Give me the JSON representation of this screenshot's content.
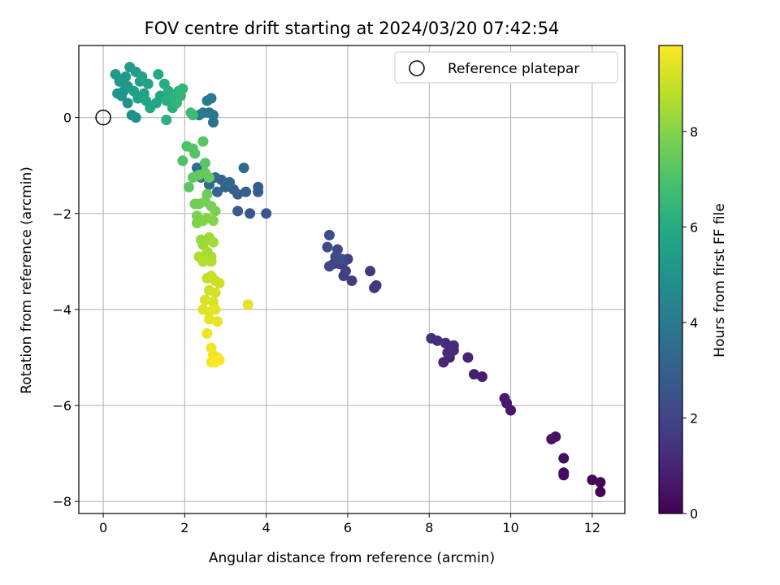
{
  "chart_data": {
    "type": "scatter",
    "title": "FOV centre drift starting at 2024/03/20 07:42:54",
    "xlabel": "Angular distance from reference (arcmin)",
    "ylabel": "Rotation from reference (arcmin)",
    "xlim": [
      -0.6,
      12.8
    ],
    "ylim": [
      -8.25,
      1.5
    ],
    "xticks": [
      0,
      2,
      4,
      6,
      8,
      10,
      12
    ],
    "yticks": [
      -8,
      -6,
      -4,
      -2,
      0
    ],
    "grid": true,
    "legend": {
      "position": "top-right",
      "entries": [
        "Reference platepar"
      ]
    },
    "reference_point": {
      "x": 0,
      "y": 0
    },
    "colorbar": {
      "label": "Hours from first FF file",
      "range": [
        0,
        9.8
      ],
      "ticks": [
        0,
        2,
        4,
        6,
        8
      ],
      "colormap": "viridis"
    },
    "points": [
      {
        "x": 12.2,
        "y": -7.8,
        "c": 0.05
      },
      {
        "x": 12.2,
        "y": -7.6,
        "c": 0.1
      },
      {
        "x": 12.0,
        "y": -7.55,
        "c": 0.15
      },
      {
        "x": 11.3,
        "y": -7.45,
        "c": 0.25
      },
      {
        "x": 11.3,
        "y": -7.4,
        "c": 0.3
      },
      {
        "x": 11.3,
        "y": -7.1,
        "c": 0.35
      },
      {
        "x": 11.1,
        "y": -6.65,
        "c": 0.45
      },
      {
        "x": 11.0,
        "y": -6.7,
        "c": 0.5
      },
      {
        "x": 10.0,
        "y": -6.1,
        "c": 0.6
      },
      {
        "x": 9.9,
        "y": -5.95,
        "c": 0.65
      },
      {
        "x": 9.85,
        "y": -5.85,
        "c": 0.7
      },
      {
        "x": 9.3,
        "y": -5.4,
        "c": 0.8
      },
      {
        "x": 9.1,
        "y": -5.35,
        "c": 0.85
      },
      {
        "x": 8.95,
        "y": -5.0,
        "c": 0.9
      },
      {
        "x": 8.35,
        "y": -5.1,
        "c": 1.0
      },
      {
        "x": 8.5,
        "y": -5.0,
        "c": 1.05
      },
      {
        "x": 8.6,
        "y": -4.85,
        "c": 1.1
      },
      {
        "x": 8.45,
        "y": -4.9,
        "c": 1.15
      },
      {
        "x": 8.6,
        "y": -4.75,
        "c": 1.2
      },
      {
        "x": 8.4,
        "y": -4.7,
        "c": 1.25
      },
      {
        "x": 8.2,
        "y": -4.65,
        "c": 1.3
      },
      {
        "x": 8.05,
        "y": -4.6,
        "c": 1.35
      },
      {
        "x": 6.65,
        "y": -3.55,
        "c": 1.5
      },
      {
        "x": 6.7,
        "y": -3.5,
        "c": 1.55
      },
      {
        "x": 6.55,
        "y": -3.2,
        "c": 1.6
      },
      {
        "x": 6.1,
        "y": -3.4,
        "c": 1.7
      },
      {
        "x": 5.9,
        "y": -3.3,
        "c": 1.75
      },
      {
        "x": 5.95,
        "y": -3.2,
        "c": 1.8
      },
      {
        "x": 5.8,
        "y": -3.05,
        "c": 1.85
      },
      {
        "x": 6.0,
        "y": -2.95,
        "c": 1.9
      },
      {
        "x": 5.9,
        "y": -3.0,
        "c": 1.95
      },
      {
        "x": 5.65,
        "y": -3.05,
        "c": 2.0
      },
      {
        "x": 5.55,
        "y": -3.1,
        "c": 2.05
      },
      {
        "x": 5.7,
        "y": -2.9,
        "c": 2.1
      },
      {
        "x": 5.75,
        "y": -2.75,
        "c": 2.15
      },
      {
        "x": 5.5,
        "y": -2.7,
        "c": 2.2
      },
      {
        "x": 5.55,
        "y": -2.45,
        "c": 2.25
      },
      {
        "x": 5.85,
        "y": -2.95,
        "c": 2.3
      },
      {
        "x": 4.0,
        "y": -2.0,
        "c": 2.6
      },
      {
        "x": 3.6,
        "y": -2.0,
        "c": 2.7
      },
      {
        "x": 3.3,
        "y": -1.95,
        "c": 2.8
      },
      {
        "x": 3.8,
        "y": -1.55,
        "c": 2.85
      },
      {
        "x": 3.8,
        "y": -1.45,
        "c": 2.9
      },
      {
        "x": 3.5,
        "y": -1.55,
        "c": 2.95
      },
      {
        "x": 3.3,
        "y": -1.6,
        "c": 3.0
      },
      {
        "x": 3.2,
        "y": -1.5,
        "c": 3.05
      },
      {
        "x": 3.0,
        "y": -1.45,
        "c": 3.1
      },
      {
        "x": 2.8,
        "y": -1.55,
        "c": 3.15
      },
      {
        "x": 2.9,
        "y": -1.3,
        "c": 3.2
      },
      {
        "x": 2.75,
        "y": -1.25,
        "c": 3.25
      },
      {
        "x": 3.1,
        "y": -1.35,
        "c": 3.3
      },
      {
        "x": 3.45,
        "y": -1.05,
        "c": 3.35
      },
      {
        "x": 2.6,
        "y": -1.4,
        "c": 3.4
      },
      {
        "x": 2.4,
        "y": -1.25,
        "c": 3.45
      },
      {
        "x": 2.3,
        "y": -1.05,
        "c": 3.5
      },
      {
        "x": 2.7,
        "y": -0.1,
        "c": 3.7
      },
      {
        "x": 2.7,
        "y": 0.05,
        "c": 3.8
      },
      {
        "x": 2.6,
        "y": 0.1,
        "c": 3.85
      },
      {
        "x": 2.45,
        "y": 0.1,
        "c": 3.9
      },
      {
        "x": 2.35,
        "y": 0.05,
        "c": 3.95
      },
      {
        "x": 2.55,
        "y": 0.35,
        "c": 4.0
      },
      {
        "x": 2.65,
        "y": 0.4,
        "c": 4.05
      },
      {
        "x": 0.7,
        "y": 0.05,
        "c": 4.8
      },
      {
        "x": 0.8,
        "y": 0.0,
        "c": 4.9
      },
      {
        "x": 0.6,
        "y": 0.3,
        "c": 4.95
      },
      {
        "x": 0.45,
        "y": 0.45,
        "c": 5.0
      },
      {
        "x": 0.35,
        "y": 0.5,
        "c": 5.05
      },
      {
        "x": 0.5,
        "y": 0.55,
        "c": 5.1
      },
      {
        "x": 0.6,
        "y": 0.65,
        "c": 5.15
      },
      {
        "x": 0.4,
        "y": 0.75,
        "c": 5.2
      },
      {
        "x": 0.3,
        "y": 0.9,
        "c": 5.25
      },
      {
        "x": 0.55,
        "y": 0.85,
        "c": 5.3
      },
      {
        "x": 0.65,
        "y": 1.05,
        "c": 5.35
      },
      {
        "x": 0.8,
        "y": 0.95,
        "c": 5.4
      },
      {
        "x": 0.9,
        "y": 0.75,
        "c": 5.45
      },
      {
        "x": 0.75,
        "y": 0.55,
        "c": 5.5
      },
      {
        "x": 0.85,
        "y": 0.4,
        "c": 5.55
      },
      {
        "x": 1.0,
        "y": 0.5,
        "c": 5.6
      },
      {
        "x": 1.1,
        "y": 0.7,
        "c": 5.65
      },
      {
        "x": 0.95,
        "y": 0.85,
        "c": 5.7
      },
      {
        "x": 1.05,
        "y": 0.35,
        "c": 5.75
      },
      {
        "x": 1.15,
        "y": 0.2,
        "c": 5.8
      },
      {
        "x": 1.3,
        "y": 0.3,
        "c": 5.85
      },
      {
        "x": 1.4,
        "y": 0.45,
        "c": 5.9
      },
      {
        "x": 1.35,
        "y": 0.9,
        "c": 5.95
      },
      {
        "x": 1.5,
        "y": 0.7,
        "c": 6.0
      },
      {
        "x": 1.6,
        "y": 0.55,
        "c": 6.05
      },
      {
        "x": 1.55,
        "y": 0.35,
        "c": 6.1
      },
      {
        "x": 1.7,
        "y": 0.2,
        "c": 6.15
      },
      {
        "x": 1.55,
        "y": -0.05,
        "c": 6.2
      },
      {
        "x": 1.75,
        "y": 0.4,
        "c": 6.25
      },
      {
        "x": 1.85,
        "y": 0.55,
        "c": 6.3
      },
      {
        "x": 1.9,
        "y": 0.45,
        "c": 6.35
      },
      {
        "x": 1.95,
        "y": 0.6,
        "c": 6.4
      },
      {
        "x": 1.8,
        "y": 0.3,
        "c": 6.45
      },
      {
        "x": 2.2,
        "y": 0.05,
        "c": 6.7
      },
      {
        "x": 2.15,
        "y": 0.1,
        "c": 6.75
      },
      {
        "x": 1.95,
        "y": -0.9,
        "c": 7.0
      },
      {
        "x": 2.05,
        "y": -0.6,
        "c": 7.05
      },
      {
        "x": 2.2,
        "y": -0.65,
        "c": 7.1
      },
      {
        "x": 2.25,
        "y": -0.75,
        "c": 7.15
      },
      {
        "x": 2.45,
        "y": -0.5,
        "c": 7.2
      },
      {
        "x": 2.5,
        "y": -0.95,
        "c": 7.25
      },
      {
        "x": 2.1,
        "y": -1.45,
        "c": 7.3
      },
      {
        "x": 2.2,
        "y": -1.25,
        "c": 7.35
      },
      {
        "x": 2.35,
        "y": -1.2,
        "c": 7.4
      },
      {
        "x": 2.5,
        "y": -1.15,
        "c": 7.45
      },
      {
        "x": 2.6,
        "y": -1.25,
        "c": 7.5
      },
      {
        "x": 2.55,
        "y": -1.6,
        "c": 7.55
      },
      {
        "x": 2.35,
        "y": -1.8,
        "c": 7.6
      },
      {
        "x": 2.25,
        "y": -1.8,
        "c": 7.65
      },
      {
        "x": 2.5,
        "y": -1.75,
        "c": 7.7
      },
      {
        "x": 2.65,
        "y": -1.85,
        "c": 7.75
      },
      {
        "x": 2.75,
        "y": -1.95,
        "c": 7.8
      },
      {
        "x": 2.3,
        "y": -2.05,
        "c": 7.85
      },
      {
        "x": 2.3,
        "y": -2.2,
        "c": 7.9
      },
      {
        "x": 2.45,
        "y": -2.15,
        "c": 7.95
      },
      {
        "x": 2.55,
        "y": -2.1,
        "c": 8.0
      },
      {
        "x": 2.7,
        "y": -2.15,
        "c": 8.05
      },
      {
        "x": 2.4,
        "y": -2.55,
        "c": 8.3
      },
      {
        "x": 2.45,
        "y": -2.65,
        "c": 8.35
      },
      {
        "x": 2.6,
        "y": -2.5,
        "c": 8.4
      },
      {
        "x": 2.7,
        "y": -2.6,
        "c": 8.45
      },
      {
        "x": 2.55,
        "y": -2.8,
        "c": 8.5
      },
      {
        "x": 2.65,
        "y": -2.9,
        "c": 8.55
      },
      {
        "x": 2.35,
        "y": -2.9,
        "c": 8.6
      },
      {
        "x": 2.45,
        "y": -3.0,
        "c": 8.65
      },
      {
        "x": 2.65,
        "y": -3.0,
        "c": 8.7
      },
      {
        "x": 2.55,
        "y": -3.35,
        "c": 8.9
      },
      {
        "x": 2.65,
        "y": -3.3,
        "c": 8.95
      },
      {
        "x": 2.75,
        "y": -3.4,
        "c": 9.0
      },
      {
        "x": 2.85,
        "y": -3.45,
        "c": 9.05
      },
      {
        "x": 2.6,
        "y": -3.6,
        "c": 9.1
      },
      {
        "x": 2.75,
        "y": -3.65,
        "c": 9.15
      },
      {
        "x": 2.5,
        "y": -3.8,
        "c": 9.2
      },
      {
        "x": 2.7,
        "y": -3.85,
        "c": 9.25
      },
      {
        "x": 2.45,
        "y": -4.0,
        "c": 9.3
      },
      {
        "x": 2.6,
        "y": -4.05,
        "c": 9.35
      },
      {
        "x": 2.75,
        "y": -4.0,
        "c": 9.4
      },
      {
        "x": 2.6,
        "y": -4.2,
        "c": 9.45
      },
      {
        "x": 2.8,
        "y": -4.25,
        "c": 9.5
      },
      {
        "x": 2.55,
        "y": -4.5,
        "c": 9.55
      },
      {
        "x": 2.65,
        "y": -4.8,
        "c": 9.6
      },
      {
        "x": 2.7,
        "y": -4.95,
        "c": 9.65
      },
      {
        "x": 2.8,
        "y": -5.0,
        "c": 9.68
      },
      {
        "x": 2.85,
        "y": -5.05,
        "c": 9.7
      },
      {
        "x": 2.65,
        "y": -5.1,
        "c": 9.72
      },
      {
        "x": 2.75,
        "y": -5.1,
        "c": 9.75
      },
      {
        "x": 3.55,
        "y": -3.9,
        "c": 9.4
      }
    ]
  }
}
